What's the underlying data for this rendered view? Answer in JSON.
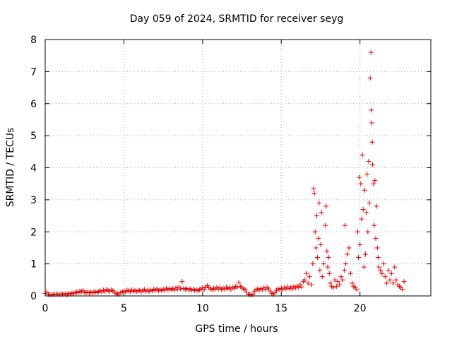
{
  "chart_data": {
    "type": "scatter",
    "title": "Day 059 of 2024, SRMTID for receiver seyg",
    "xlabel": "GPS time / hours",
    "ylabel": "SRMTID / TECUs",
    "xlim": [
      0,
      24.5
    ],
    "ylim": [
      0,
      8
    ],
    "xticks": [
      0,
      5,
      10,
      15,
      20
    ],
    "yticks": [
      0,
      1,
      2,
      3,
      4,
      5,
      6,
      7,
      8
    ],
    "grid": true,
    "marker": "+",
    "series": [
      {
        "name": "SRMTID",
        "color": "#e00000",
        "points": [
          [
            0.0,
            0.08
          ],
          [
            0.1,
            0.12
          ],
          [
            0.2,
            0.05
          ],
          [
            0.3,
            0.04
          ],
          [
            0.4,
            0.03
          ],
          [
            0.5,
            0.05
          ],
          [
            0.6,
            0.04
          ],
          [
            0.7,
            0.06
          ],
          [
            0.8,
            0.05
          ],
          [
            0.9,
            0.04
          ],
          [
            1.0,
            0.06
          ],
          [
            1.1,
            0.05
          ],
          [
            1.2,
            0.07
          ],
          [
            1.3,
            0.05
          ],
          [
            1.4,
            0.04
          ],
          [
            1.5,
            0.08
          ],
          [
            1.6,
            0.06
          ],
          [
            1.7,
            0.09
          ],
          [
            1.8,
            0.07
          ],
          [
            1.9,
            0.1
          ],
          [
            2.0,
            0.12
          ],
          [
            2.1,
            0.1
          ],
          [
            2.2,
            0.15
          ],
          [
            2.3,
            0.13
          ],
          [
            2.4,
            0.17
          ],
          [
            2.5,
            0.11
          ],
          [
            2.6,
            0.1
          ],
          [
            2.7,
            0.13
          ],
          [
            2.8,
            0.09
          ],
          [
            2.9,
            0.12
          ],
          [
            3.0,
            0.1
          ],
          [
            3.1,
            0.13
          ],
          [
            3.2,
            0.12
          ],
          [
            3.3,
            0.1
          ],
          [
            3.4,
            0.14
          ],
          [
            3.5,
            0.16
          ],
          [
            3.6,
            0.12
          ],
          [
            3.7,
            0.18
          ],
          [
            3.8,
            0.15
          ],
          [
            3.9,
            0.2
          ],
          [
            4.0,
            0.17
          ],
          [
            4.1,
            0.14
          ],
          [
            4.2,
            0.19
          ],
          [
            4.3,
            0.16
          ],
          [
            4.4,
            0.12
          ],
          [
            4.5,
            0.08
          ],
          [
            4.6,
            0.06
          ],
          [
            4.7,
            0.05
          ],
          [
            4.8,
            0.1
          ],
          [
            4.9,
            0.13
          ],
          [
            5.0,
            0.15
          ],
          [
            5.1,
            0.12
          ],
          [
            5.2,
            0.18
          ],
          [
            5.3,
            0.16
          ],
          [
            5.4,
            0.13
          ],
          [
            5.5,
            0.19
          ],
          [
            5.6,
            0.15
          ],
          [
            5.7,
            0.17
          ],
          [
            5.8,
            0.14
          ],
          [
            5.9,
            0.16
          ],
          [
            6.0,
            0.18
          ],
          [
            6.1,
            0.13
          ],
          [
            6.2,
            0.17
          ],
          [
            6.3,
            0.2
          ],
          [
            6.4,
            0.15
          ],
          [
            6.5,
            0.18
          ],
          [
            6.6,
            0.14
          ],
          [
            6.7,
            0.19
          ],
          [
            6.8,
            0.16
          ],
          [
            6.9,
            0.21
          ],
          [
            7.0,
            0.18
          ],
          [
            7.1,
            0.22
          ],
          [
            7.2,
            0.16
          ],
          [
            7.3,
            0.19
          ],
          [
            7.4,
            0.17
          ],
          [
            7.5,
            0.21
          ],
          [
            7.6,
            0.18
          ],
          [
            7.7,
            0.24
          ],
          [
            7.8,
            0.19
          ],
          [
            7.9,
            0.22
          ],
          [
            8.0,
            0.2
          ],
          [
            8.1,
            0.23
          ],
          [
            8.2,
            0.18
          ],
          [
            8.3,
            0.25
          ],
          [
            8.4,
            0.21
          ],
          [
            8.5,
            0.28
          ],
          [
            8.6,
            0.22
          ],
          [
            8.7,
            0.45
          ],
          [
            8.8,
            0.24
          ],
          [
            8.9,
            0.2
          ],
          [
            9.0,
            0.23
          ],
          [
            9.1,
            0.19
          ],
          [
            9.2,
            0.22
          ],
          [
            9.3,
            0.18
          ],
          [
            9.4,
            0.21
          ],
          [
            9.5,
            0.17
          ],
          [
            9.6,
            0.2
          ],
          [
            9.7,
            0.16
          ],
          [
            9.8,
            0.19
          ],
          [
            9.9,
            0.22
          ],
          [
            10.0,
            0.25
          ],
          [
            10.1,
            0.2
          ],
          [
            10.2,
            0.28
          ],
          [
            10.3,
            0.32
          ],
          [
            10.4,
            0.26
          ],
          [
            10.5,
            0.22
          ],
          [
            10.6,
            0.19
          ],
          [
            10.7,
            0.24
          ],
          [
            10.8,
            0.2
          ],
          [
            10.9,
            0.27
          ],
          [
            11.0,
            0.22
          ],
          [
            11.1,
            0.26
          ],
          [
            11.2,
            0.2
          ],
          [
            11.3,
            0.24
          ],
          [
            11.4,
            0.21
          ],
          [
            11.5,
            0.28
          ],
          [
            11.6,
            0.23
          ],
          [
            11.7,
            0.25
          ],
          [
            11.8,
            0.2
          ],
          [
            11.9,
            0.27
          ],
          [
            12.0,
            0.24
          ],
          [
            12.1,
            0.3
          ],
          [
            12.2,
            0.26
          ],
          [
            12.3,
            0.42
          ],
          [
            12.4,
            0.3
          ],
          [
            12.5,
            0.25
          ],
          [
            12.6,
            0.22
          ],
          [
            12.7,
            0.2
          ],
          [
            12.8,
            0.12
          ],
          [
            12.9,
            0.06
          ],
          [
            13.0,
            0.04
          ],
          [
            13.1,
            0.03
          ],
          [
            13.2,
            0.05
          ],
          [
            13.3,
            0.15
          ],
          [
            13.4,
            0.2
          ],
          [
            13.5,
            0.22
          ],
          [
            13.6,
            0.18
          ],
          [
            13.7,
            0.23
          ],
          [
            13.8,
            0.19
          ],
          [
            13.9,
            0.25
          ],
          [
            14.0,
            0.2
          ],
          [
            14.1,
            0.27
          ],
          [
            14.2,
            0.22
          ],
          [
            14.3,
            0.15
          ],
          [
            14.4,
            0.08
          ],
          [
            14.5,
            0.05
          ],
          [
            14.6,
            0.1
          ],
          [
            14.7,
            0.18
          ],
          [
            14.8,
            0.22
          ],
          [
            14.9,
            0.19
          ],
          [
            15.0,
            0.24
          ],
          [
            15.1,
            0.2
          ],
          [
            15.2,
            0.26
          ],
          [
            15.3,
            0.22
          ],
          [
            15.4,
            0.28
          ],
          [
            15.5,
            0.23
          ],
          [
            15.6,
            0.27
          ],
          [
            15.7,
            0.22
          ],
          [
            15.8,
            0.3
          ],
          [
            15.9,
            0.25
          ],
          [
            16.0,
            0.3
          ],
          [
            16.1,
            0.26
          ],
          [
            16.2,
            0.35
          ],
          [
            16.3,
            0.28
          ],
          [
            16.4,
            0.45
          ],
          [
            16.5,
            0.5
          ],
          [
            16.6,
            0.7
          ],
          [
            16.7,
            0.4
          ],
          [
            16.8,
            0.6
          ],
          [
            16.9,
            0.35
          ],
          [
            17.0,
            1.0
          ],
          [
            17.05,
            3.35
          ],
          [
            17.1,
            3.2
          ],
          [
            17.15,
            2.0
          ],
          [
            17.2,
            1.5
          ],
          [
            17.25,
            2.5
          ],
          [
            17.3,
            1.2
          ],
          [
            17.35,
            1.8
          ],
          [
            17.4,
            2.9
          ],
          [
            17.45,
            0.8
          ],
          [
            17.5,
            1.6
          ],
          [
            17.55,
            2.6
          ],
          [
            17.6,
            0.6
          ],
          [
            17.7,
            1.0
          ],
          [
            17.8,
            2.2
          ],
          [
            17.85,
            2.8
          ],
          [
            17.9,
            1.4
          ],
          [
            17.95,
            0.9
          ],
          [
            18.0,
            1.2
          ],
          [
            18.05,
            0.7
          ],
          [
            18.1,
            0.4
          ],
          [
            18.2,
            0.3
          ],
          [
            18.3,
            0.25
          ],
          [
            18.4,
            0.5
          ],
          [
            18.5,
            0.3
          ],
          [
            18.6,
            0.45
          ],
          [
            18.7,
            0.35
          ],
          [
            18.8,
            0.6
          ],
          [
            18.9,
            0.5
          ],
          [
            19.0,
            0.8
          ],
          [
            19.05,
            2.2
          ],
          [
            19.1,
            1.0
          ],
          [
            19.2,
            1.3
          ],
          [
            19.3,
            1.5
          ],
          [
            19.4,
            0.7
          ],
          [
            19.5,
            0.4
          ],
          [
            19.6,
            0.3
          ],
          [
            19.7,
            0.25
          ],
          [
            19.8,
            0.2
          ],
          [
            19.85,
            2.0
          ],
          [
            19.9,
            1.2
          ],
          [
            19.95,
            3.7
          ],
          [
            20.0,
            1.6
          ],
          [
            20.05,
            3.5
          ],
          [
            20.1,
            2.4
          ],
          [
            20.15,
            4.4
          ],
          [
            20.2,
            2.7
          ],
          [
            20.25,
            0.9
          ],
          [
            20.3,
            3.3
          ],
          [
            20.35,
            1.3
          ],
          [
            20.4,
            2.6
          ],
          [
            20.45,
            3.8
          ],
          [
            20.5,
            2.0
          ],
          [
            20.55,
            4.2
          ],
          [
            20.6,
            2.9
          ],
          [
            20.65,
            6.8
          ],
          [
            20.7,
            7.6
          ],
          [
            20.72,
            5.8
          ],
          [
            20.75,
            5.4
          ],
          [
            20.78,
            4.8
          ],
          [
            20.8,
            4.1
          ],
          [
            20.85,
            3.5
          ],
          [
            20.9,
            2.2
          ],
          [
            20.95,
            3.6
          ],
          [
            21.0,
            1.8
          ],
          [
            21.05,
            2.8
          ],
          [
            21.1,
            1.5
          ],
          [
            21.15,
            1.2
          ],
          [
            21.2,
            0.9
          ],
          [
            21.3,
            0.8
          ],
          [
            21.4,
            0.7
          ],
          [
            21.5,
            1.0
          ],
          [
            21.6,
            0.6
          ],
          [
            21.7,
            0.4
          ],
          [
            21.8,
            0.8
          ],
          [
            21.9,
            0.5
          ],
          [
            22.0,
            0.7
          ],
          [
            22.1,
            0.4
          ],
          [
            22.2,
            0.9
          ],
          [
            22.3,
            0.5
          ],
          [
            22.4,
            0.35
          ],
          [
            22.5,
            0.3
          ],
          [
            22.6,
            0.25
          ],
          [
            22.7,
            0.2
          ],
          [
            22.8,
            0.45
          ]
        ]
      }
    ]
  }
}
